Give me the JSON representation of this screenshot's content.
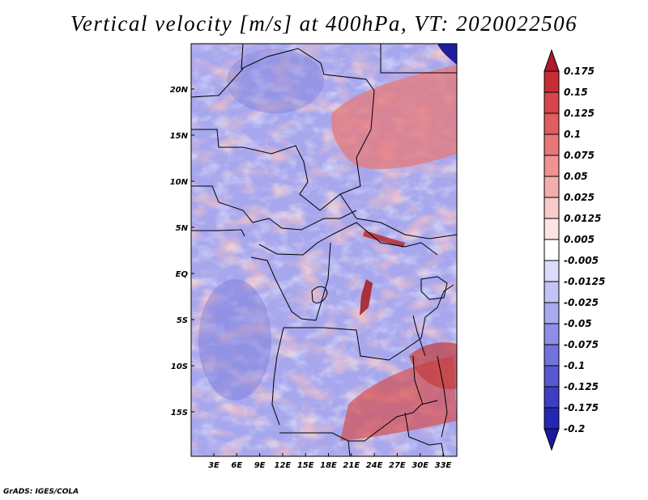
{
  "title": "Vertical velocity [m/s] at 400hPa, VT: 2020022506",
  "footer": "GrADS: IGES/COLA",
  "map": {
    "lat_labels": [
      "20N",
      "15N",
      "10N",
      "5N",
      "EQ",
      "5S",
      "10S",
      "15S"
    ],
    "lon_labels": [
      "3E",
      "6E",
      "9E",
      "12E",
      "15E",
      "18E",
      "21E",
      "24E",
      "27E",
      "30E",
      "33E"
    ]
  },
  "colorbar": {
    "labels": [
      "0.175",
      "0.15",
      "0.125",
      "0.1",
      "0.075",
      "0.05",
      "0.025",
      "0.0125",
      "0.005",
      "-0.005",
      "-0.0125",
      "-0.025",
      "-0.05",
      "-0.075",
      "-0.1",
      "-0.125",
      "-0.175",
      "-0.2"
    ],
    "colors": [
      "#b2182b",
      "#c52f34",
      "#d6464a",
      "#e05e5e",
      "#e87878",
      "#ef9292",
      "#f4adad",
      "#f8caca",
      "#fce4e4",
      "#ffffff",
      "#dcdcfa",
      "#c3c3f5",
      "#a9a9ef",
      "#8e8ee8",
      "#7373de",
      "#5858d2",
      "#3e3ec5",
      "#2626b4",
      "#1a1aa0"
    ]
  }
}
